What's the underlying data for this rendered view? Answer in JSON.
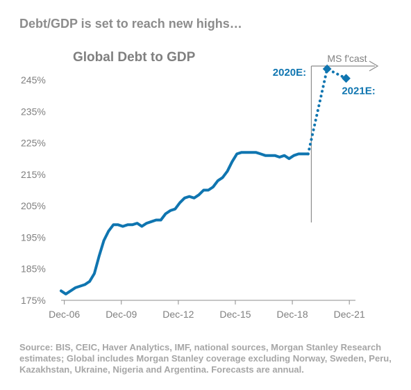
{
  "headline": "Debt/GDP is set to reach new highs…",
  "source": "Source: BIS, CEIC, Haver Analytics, IMF, national sources, Morgan Stanley Research estimates; Global includes Morgan Stanley coverage excluding Norway, Sweden, Peru, Kazakhstan, Ukraine, Nigeria and Argentina. Forecasts are annual.",
  "colors": {
    "line": "#0f75b0",
    "axis": "#8c8c8c",
    "text": "#7f7f7f"
  },
  "chart_data": {
    "type": "line",
    "title": "Global Debt to GDP",
    "xlabel": "",
    "ylabel": "",
    "ylim": [
      175,
      250
    ],
    "xlim": [
      2006.75,
      2021.95
    ],
    "yticks": [
      "245%",
      "235%",
      "225%",
      "215%",
      "205%",
      "195%",
      "185%",
      "175%"
    ],
    "ytick_values": [
      245,
      235,
      225,
      215,
      205,
      195,
      185,
      175
    ],
    "xticks": [
      "Dec-06",
      "Dec-09",
      "Dec-12",
      "Dec-15",
      "Dec-18",
      "Dec-21"
    ],
    "xtick_values": [
      2006.92,
      2009.92,
      2012.92,
      2015.92,
      2018.92,
      2021.92
    ],
    "grid": false,
    "forecast_label": "MS f'cast",
    "forecast_start": 2019.92,
    "series": [
      {
        "style": "solid",
        "x": [
          2006.75,
          2007.0,
          2007.25,
          2007.5,
          2007.75,
          2008.0,
          2008.25,
          2008.5,
          2008.75,
          2009.0,
          2009.25,
          2009.5,
          2009.75,
          2010.0,
          2010.25,
          2010.5,
          2010.75,
          2011.0,
          2011.25,
          2011.5,
          2011.75,
          2012.0,
          2012.25,
          2012.5,
          2012.75,
          2013.0,
          2013.25,
          2013.5,
          2013.75,
          2014.0,
          2014.25,
          2014.5,
          2014.75,
          2015.0,
          2015.25,
          2015.5,
          2015.75,
          2016.0,
          2016.25,
          2016.5,
          2016.75,
          2017.0,
          2017.25,
          2017.5,
          2017.75,
          2018.0,
          2018.25,
          2018.5,
          2018.75,
          2019.0,
          2019.25,
          2019.5,
          2019.75
        ],
        "y": [
          178,
          177,
          178,
          179,
          179.5,
          180,
          181,
          183.5,
          189,
          194,
          197,
          199,
          199,
          198.5,
          199,
          199,
          199.5,
          198.5,
          199.5,
          200,
          200.5,
          200.5,
          202.5,
          203.5,
          204,
          206,
          207.5,
          208,
          207.5,
          208.5,
          210,
          210,
          211,
          213,
          214,
          216,
          219,
          221.5,
          222,
          222,
          222,
          222,
          221.5,
          221,
          221,
          221,
          220.5,
          221,
          220,
          221,
          221.5,
          221.5,
          221.5
        ]
      },
      {
        "style": "dotted",
        "x": [
          2019.75,
          2020.75,
          2021.75
        ],
        "y": [
          221.5,
          248.5,
          245.5
        ]
      }
    ],
    "annotations": [
      {
        "text": "2020E:",
        "x": 2020.75,
        "y": 248.5,
        "side": "left"
      },
      {
        "text": "2021E:",
        "x": 2021.75,
        "y": 245.5,
        "side": "below"
      }
    ]
  }
}
